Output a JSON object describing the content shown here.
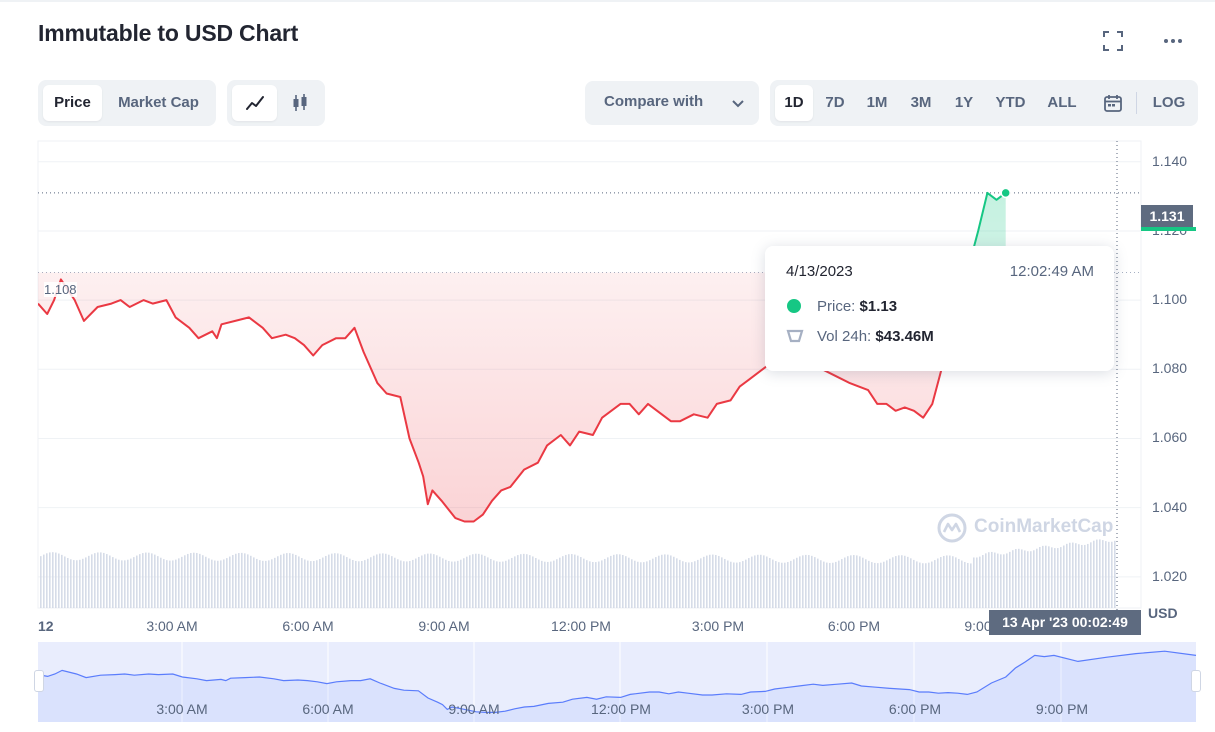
{
  "header": {
    "title": "Immutable to USD Chart"
  },
  "toolbar": {
    "metric_tabs": [
      {
        "label": "Price",
        "active": true
      },
      {
        "label": "Market Cap",
        "active": false
      }
    ],
    "chart_types": [
      {
        "icon": "line-chart-icon",
        "active": true
      },
      {
        "icon": "candlestick-icon",
        "active": false
      }
    ],
    "compare_label": "Compare with",
    "ranges": [
      {
        "label": "1D",
        "active": true
      },
      {
        "label": "7D",
        "active": false
      },
      {
        "label": "1M",
        "active": false
      },
      {
        "label": "3M",
        "active": false
      },
      {
        "label": "1Y",
        "active": false
      },
      {
        "label": "YTD",
        "active": false
      },
      {
        "label": "ALL",
        "active": false
      }
    ],
    "calendar_icon": "calendar-icon",
    "log_label": "LOG"
  },
  "tooltip": {
    "date": "4/13/2023",
    "time": "12:02:49 AM",
    "price_label": "Price:",
    "price_value": "$1.13",
    "volume_label": "Vol 24h:",
    "volume_value": "$43.46M"
  },
  "crosshair": {
    "date_label": "13 Apr '23   00:02:49",
    "current_price": "1.131",
    "open_price_label": "1.108"
  },
  "watermark": "CoinMarketCap",
  "colors": {
    "down": "#ea3943",
    "up": "#16c784",
    "navigator": "#3861fb",
    "text_muted": "#58667e"
  },
  "chart_data": {
    "type": "line",
    "title": "Immutable to USD Chart",
    "ylabel": "USD",
    "ylim": [
      1.011,
      1.146
    ],
    "y_ticks": [
      "1.140",
      "1.120",
      "1.100",
      "1.080",
      "1.060",
      "1.040",
      "1.020"
    ],
    "x_ticks": [
      "12",
      "3:00 AM",
      "6:00 AM",
      "9:00 AM",
      "12:00 PM",
      "3:00 PM",
      "6:00 PM",
      "9:00"
    ],
    "navigator_ticks": [
      "3:00 AM",
      "6:00 AM",
      "9:00 AM",
      "12:00 PM",
      "3:00 PM",
      "6:00 PM",
      "9:00 PM"
    ],
    "x_range_hours": [
      0,
      24.05
    ],
    "reference_open": 1.108,
    "series": [
      {
        "x_hours": [
          0,
          0.2,
          0.35,
          0.5,
          0.8,
          1.0,
          1.3,
          1.6,
          1.8,
          2.0,
          2.3,
          2.5,
          2.8,
          3.0,
          3.3,
          3.5,
          3.8,
          3.9,
          4.0,
          4.3,
          4.6,
          4.9,
          5.1,
          5.4,
          5.6,
          5.8,
          6.0,
          6.2,
          6.5,
          6.7,
          6.9,
          7.1,
          7.4,
          7.6,
          7.9,
          8.1,
          8.3,
          8.4,
          8.5,
          8.6,
          8.8,
          9.1,
          9.3,
          9.5,
          9.7,
          9.9,
          10.1,
          10.3,
          10.6,
          10.9,
          11.1,
          11.4,
          11.6,
          11.8,
          12.1,
          12.3,
          12.7,
          12.9,
          13.1,
          13.3,
          13.5,
          13.8,
          14.0,
          14.3,
          14.6,
          14.8,
          15.1,
          15.3,
          15.5,
          15.8,
          16.1,
          16.3,
          16.6,
          16.9,
          17.1,
          17.4,
          17.7,
          17.9,
          18.1,
          18.3,
          18.5,
          18.7,
          18.9,
          19.1,
          19.3,
          19.5,
          19.8,
          20.1,
          20.3,
          20.5,
          20.7,
          20.9,
          21.1
        ],
        "values": [
          1.099,
          1.096,
          1.1,
          1.106,
          1.1,
          1.094,
          1.098,
          1.099,
          1.1,
          1.098,
          1.1,
          1.099,
          1.1,
          1.095,
          1.092,
          1.089,
          1.091,
          1.089,
          1.093,
          1.094,
          1.095,
          1.092,
          1.089,
          1.09,
          1.089,
          1.087,
          1.084,
          1.087,
          1.089,
          1.089,
          1.092,
          1.085,
          1.076,
          1.073,
          1.072,
          1.06,
          1.053,
          1.049,
          1.041,
          1.045,
          1.042,
          1.037,
          1.036,
          1.036,
          1.038,
          1.042,
          1.045,
          1.046,
          1.051,
          1.053,
          1.058,
          1.061,
          1.058,
          1.062,
          1.061,
          1.066,
          1.07,
          1.07,
          1.067,
          1.07,
          1.068,
          1.065,
          1.065,
          1.067,
          1.066,
          1.07,
          1.071,
          1.075,
          1.077,
          1.08,
          1.083,
          1.081,
          1.083,
          1.085,
          1.08,
          1.078,
          1.076,
          1.075,
          1.074,
          1.07,
          1.07,
          1.068,
          1.069,
          1.068,
          1.066,
          1.07,
          1.085,
          1.095,
          1.11,
          1.12,
          1.131,
          1.129,
          1.131
        ],
        "color_below_open": "#ea3943",
        "color_above_open": "#16c784"
      }
    ],
    "volume_bars": "normalized 0-1 heights from about 0.80 to 1.00",
    "grid": true,
    "legend": "none"
  }
}
